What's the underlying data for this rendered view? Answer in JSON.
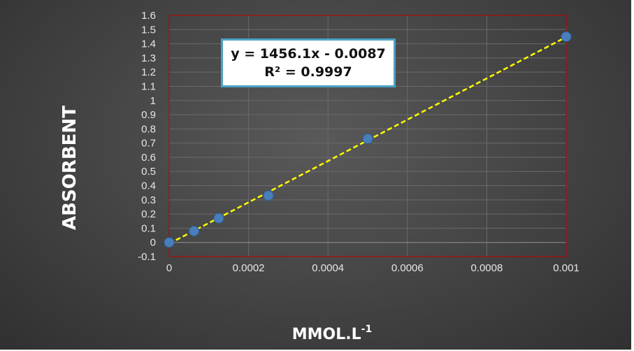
{
  "chart_data": {
    "type": "scatter",
    "xlabel": "MMOL.L",
    "xlabel_superscript": "-1",
    "ylabel": "ABSORBENT",
    "xlim": [
      0,
      0.001
    ],
    "ylim": [
      -0.1,
      1.6
    ],
    "x_ticks": [
      "0",
      "0.0002",
      "0.0004",
      "0.0006",
      "0.0008",
      "0.001"
    ],
    "y_ticks": [
      "-0.1",
      "0",
      "0.1",
      "0.2",
      "0.3",
      "0.4",
      "0.5",
      "0.6",
      "0.7",
      "0.8",
      "0.9",
      "1",
      "1.1",
      "1.2",
      "1.3",
      "1.4",
      "1.5",
      "1.6"
    ],
    "grid": true,
    "series": [
      {
        "points": [
          {
            "x": 0,
            "y": 0
          },
          {
            "x": 6.25e-05,
            "y": 0.08
          },
          {
            "x": 0.000125,
            "y": 0.17
          },
          {
            "x": 0.00025,
            "y": 0.33
          },
          {
            "x": 0.0005,
            "y": 0.73
          },
          {
            "x": 0.001,
            "y": 1.45
          }
        ]
      }
    ],
    "trendline": {
      "type": "linear",
      "slope": 1456.1,
      "intercept": -0.0087,
      "equation": "y = 1456.1x - 0.0087",
      "r_squared": "R² = 0.9997"
    },
    "colors": {
      "marker": "#4a7ebb",
      "trendline": "#ffff00",
      "plot_border": "#c00000",
      "grid": "#6a6a6a",
      "label_border": "#4aa3c4"
    }
  }
}
